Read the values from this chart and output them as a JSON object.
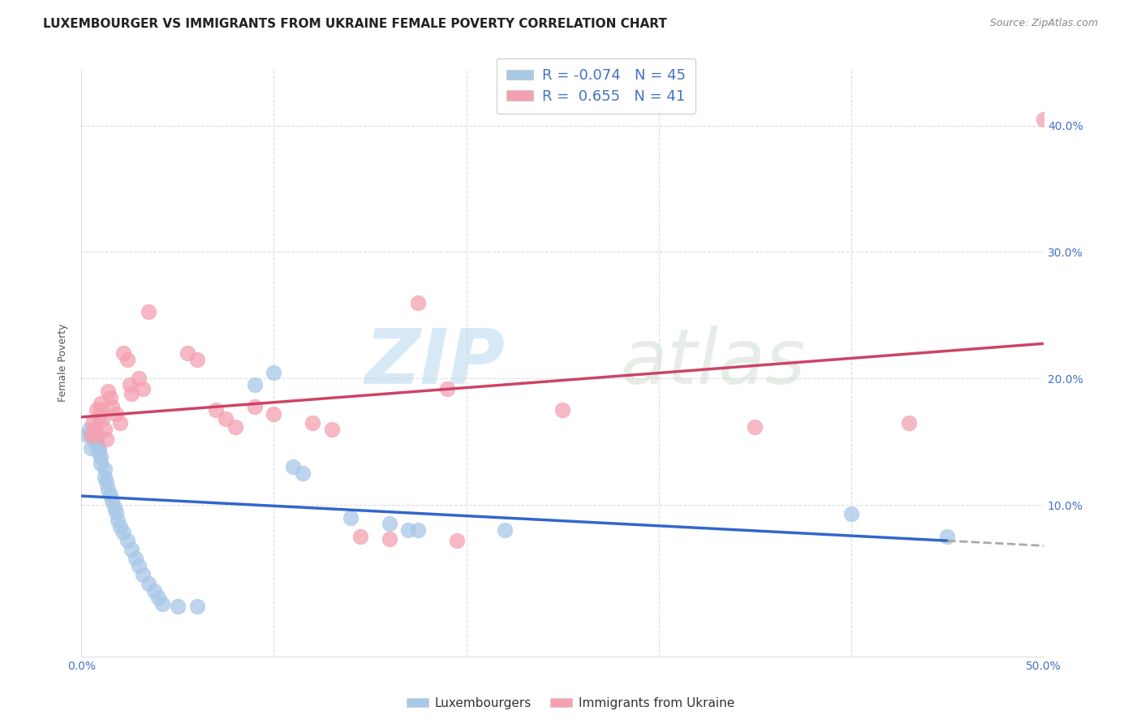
{
  "title": "LUXEMBOURGER VS IMMIGRANTS FROM UKRAINE FEMALE POVERTY CORRELATION CHART",
  "source": "Source: ZipAtlas.com",
  "ylabel": "Female Poverty",
  "xlim": [
    0.0,
    0.5
  ],
  "ylim": [
    -0.02,
    0.445
  ],
  "grid_color": "#dddddd",
  "background_color": "#ffffff",
  "blue_color": "#a8c8e8",
  "pink_color": "#f4a0b0",
  "blue_line_color": "#3366cc",
  "pink_line_color": "#cc4466",
  "blue_scatter": [
    [
      0.003,
      0.155
    ],
    [
      0.004,
      0.16
    ],
    [
      0.005,
      0.145
    ],
    [
      0.006,
      0.155
    ],
    [
      0.007,
      0.155
    ],
    [
      0.007,
      0.15
    ],
    [
      0.008,
      0.152
    ],
    [
      0.008,
      0.148
    ],
    [
      0.009,
      0.145
    ],
    [
      0.009,
      0.142
    ],
    [
      0.01,
      0.138
    ],
    [
      0.01,
      0.133
    ],
    [
      0.012,
      0.128
    ],
    [
      0.012,
      0.122
    ],
    [
      0.013,
      0.118
    ],
    [
      0.014,
      0.112
    ],
    [
      0.015,
      0.108
    ],
    [
      0.016,
      0.103
    ],
    [
      0.017,
      0.098
    ],
    [
      0.018,
      0.094
    ],
    [
      0.019,
      0.088
    ],
    [
      0.02,
      0.083
    ],
    [
      0.022,
      0.078
    ],
    [
      0.024,
      0.072
    ],
    [
      0.026,
      0.065
    ],
    [
      0.028,
      0.058
    ],
    [
      0.03,
      0.052
    ],
    [
      0.032,
      0.045
    ],
    [
      0.035,
      0.038
    ],
    [
      0.038,
      0.032
    ],
    [
      0.04,
      0.027
    ],
    [
      0.042,
      0.022
    ],
    [
      0.05,
      0.02
    ],
    [
      0.06,
      0.02
    ],
    [
      0.09,
      0.195
    ],
    [
      0.1,
      0.205
    ],
    [
      0.11,
      0.13
    ],
    [
      0.115,
      0.125
    ],
    [
      0.14,
      0.09
    ],
    [
      0.16,
      0.085
    ],
    [
      0.17,
      0.08
    ],
    [
      0.175,
      0.08
    ],
    [
      0.22,
      0.08
    ],
    [
      0.4,
      0.093
    ],
    [
      0.45,
      0.075
    ]
  ],
  "pink_scatter": [
    [
      0.005,
      0.155
    ],
    [
      0.006,
      0.165
    ],
    [
      0.007,
      0.16
    ],
    [
      0.008,
      0.155
    ],
    [
      0.008,
      0.175
    ],
    [
      0.009,
      0.17
    ],
    [
      0.01,
      0.18
    ],
    [
      0.01,
      0.175
    ],
    [
      0.011,
      0.168
    ],
    [
      0.012,
      0.16
    ],
    [
      0.013,
      0.152
    ],
    [
      0.014,
      0.19
    ],
    [
      0.015,
      0.185
    ],
    [
      0.016,
      0.178
    ],
    [
      0.018,
      0.172
    ],
    [
      0.02,
      0.165
    ],
    [
      0.022,
      0.22
    ],
    [
      0.024,
      0.215
    ],
    [
      0.025,
      0.195
    ],
    [
      0.026,
      0.188
    ],
    [
      0.03,
      0.2
    ],
    [
      0.032,
      0.192
    ],
    [
      0.035,
      0.253
    ],
    [
      0.055,
      0.22
    ],
    [
      0.06,
      0.215
    ],
    [
      0.07,
      0.175
    ],
    [
      0.075,
      0.168
    ],
    [
      0.08,
      0.162
    ],
    [
      0.09,
      0.178
    ],
    [
      0.1,
      0.172
    ],
    [
      0.12,
      0.165
    ],
    [
      0.13,
      0.16
    ],
    [
      0.145,
      0.075
    ],
    [
      0.16,
      0.073
    ],
    [
      0.195,
      0.072
    ],
    [
      0.175,
      0.26
    ],
    [
      0.19,
      0.192
    ],
    [
      0.25,
      0.175
    ],
    [
      0.35,
      0.162
    ],
    [
      0.43,
      0.165
    ],
    [
      0.5,
      0.405
    ]
  ],
  "blue_R": "-0.074",
  "blue_N": "45",
  "pink_R": "0.655",
  "pink_N": "41",
  "legend_labels": [
    "Luxembourgers",
    "Immigrants from Ukraine"
  ],
  "watermark_zip": "ZIP",
  "watermark_atlas": "atlas",
  "title_fontsize": 11,
  "axis_label_fontsize": 9,
  "tick_fontsize": 10
}
